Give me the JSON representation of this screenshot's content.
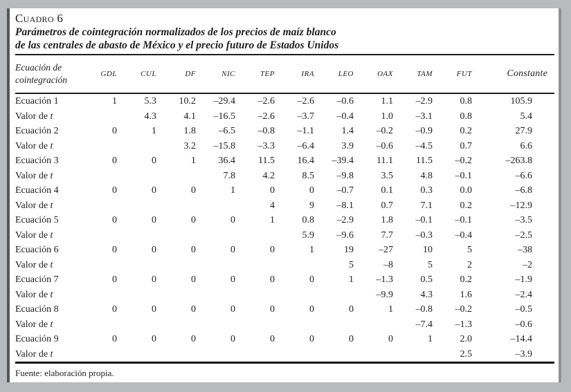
{
  "page": {
    "kicker": "Cuadro 6",
    "title_line1": "Parámetros de cointegración normalizados de los precios de maíz blanco",
    "title_line2": "de las centrales de abasto de México y el precio futuro de Estados Unidos",
    "source_note": "Fuente: elaboración propia."
  },
  "chart_data": {
    "type": "table",
    "row_header_line1": "Ecuación de",
    "row_header_line2": "cointegración",
    "columns": [
      "GDL",
      "CUL",
      "DF",
      "NIC",
      "TEP",
      "IRA",
      "LEO",
      "OAX",
      "TAM",
      "FUT",
      "Constante"
    ],
    "rows": [
      {
        "label": "Ecuación 1",
        "t_row": false,
        "values": [
          "1",
          "5.3",
          "10.2",
          "–29.4",
          "–2.6",
          "–2.6",
          "–0.6",
          "1.1",
          "–2.9",
          "0.8",
          "105.9"
        ]
      },
      {
        "label": "Valor de t",
        "t_row": true,
        "values": [
          "",
          "4.3",
          "4.1",
          "–16.5",
          "–2.6",
          "–3.7",
          "–0.4",
          "1.0",
          "–3.1",
          "0.8",
          "5.4"
        ]
      },
      {
        "label": "Ecuación 2",
        "t_row": false,
        "values": [
          "0",
          "1",
          "1.8",
          "–6.5",
          "–0.8",
          "–1.1",
          "1.4",
          "–0.2",
          "–0.9",
          "0.2",
          "27.9"
        ]
      },
      {
        "label": "Valor de t",
        "t_row": true,
        "values": [
          "",
          "",
          "3.2",
          "–15.8",
          "–3.3",
          "–6.4",
          "3.9",
          "–0.6",
          "–4.5",
          "0.7",
          "6.6"
        ]
      },
      {
        "label": "Ecuación 3",
        "t_row": false,
        "values": [
          "0",
          "0",
          "1",
          "36.4",
          "11.5",
          "16.4",
          "–39.4",
          "11.1",
          "11.5",
          "–0.2",
          "–263.8"
        ]
      },
      {
        "label": "Valor de t",
        "t_row": true,
        "values": [
          "",
          "",
          "",
          "7.8",
          "4.2",
          "8.5",
          "–9.8",
          "3.5",
          "4.8",
          "–0.1",
          "–6.6"
        ]
      },
      {
        "label": "Ecuación 4",
        "t_row": false,
        "values": [
          "0",
          "0",
          "0",
          "1",
          "0",
          "0",
          "–0.7",
          "0.1",
          "0.3",
          "0.0",
          "–6.8"
        ]
      },
      {
        "label": "Valor de t",
        "t_row": true,
        "values": [
          "",
          "",
          "",
          "",
          "4",
          "9",
          "–8.1",
          "0.7",
          "7.1",
          "0.2",
          "–12.9"
        ]
      },
      {
        "label": "Ecuación 5",
        "t_row": false,
        "values": [
          "0",
          "0",
          "0",
          "0",
          "1",
          "0.8",
          "–2.9",
          "1.8",
          "–0.1",
          "–0.1",
          "–3.5"
        ]
      },
      {
        "label": "Valor de t",
        "t_row": true,
        "values": [
          "",
          "",
          "",
          "",
          "",
          "5.9",
          "–9.6",
          "7.7",
          "–0.3",
          "–0.4",
          "–2.5"
        ]
      },
      {
        "label": "Ecuación 6",
        "t_row": false,
        "values": [
          "0",
          "0",
          "0",
          "0",
          "0",
          "1",
          "19",
          "–27",
          "10",
          "5",
          "–38"
        ]
      },
      {
        "label": "Valor de t",
        "t_row": true,
        "values": [
          "",
          "",
          "",
          "",
          "",
          "",
          "5",
          "–8",
          "5",
          "2",
          "–2"
        ]
      },
      {
        "label": "Ecuación 7",
        "t_row": false,
        "values": [
          "0",
          "0",
          "0",
          "0",
          "0",
          "0",
          "1",
          "–1.3",
          "0.5",
          "0.2",
          "–1.9"
        ]
      },
      {
        "label": "Valor de t",
        "t_row": true,
        "values": [
          "",
          "",
          "",
          "",
          "",
          "",
          "",
          "–9.9",
          "4.3",
          "1.6",
          "–2.4"
        ]
      },
      {
        "label": "Ecuación 8",
        "t_row": false,
        "values": [
          "0",
          "0",
          "0",
          "0",
          "0",
          "0",
          "0",
          "1",
          "–0.8",
          "–0.2",
          "–0.5"
        ]
      },
      {
        "label": "Valor de t",
        "t_row": true,
        "values": [
          "",
          "",
          "",
          "",
          "",
          "",
          "",
          "",
          "–7.4",
          "–1.3",
          "–0.6"
        ]
      },
      {
        "label": "Ecuación 9",
        "t_row": false,
        "values": [
          "0",
          "0",
          "0",
          "0",
          "0",
          "0",
          "0",
          "0",
          "1",
          "2.0",
          "–14.4"
        ]
      },
      {
        "label": "Valor de t",
        "t_row": true,
        "values": [
          "",
          "",
          "",
          "",
          "",
          "",
          "",
          "",
          "",
          "2.5",
          "–3.9"
        ]
      }
    ]
  },
  "frame": {
    "background_color": "#b8babd",
    "page_color": "#ffffff",
    "edge_dark_color": "#54555a",
    "rule_color": "#1d1d1d"
  }
}
